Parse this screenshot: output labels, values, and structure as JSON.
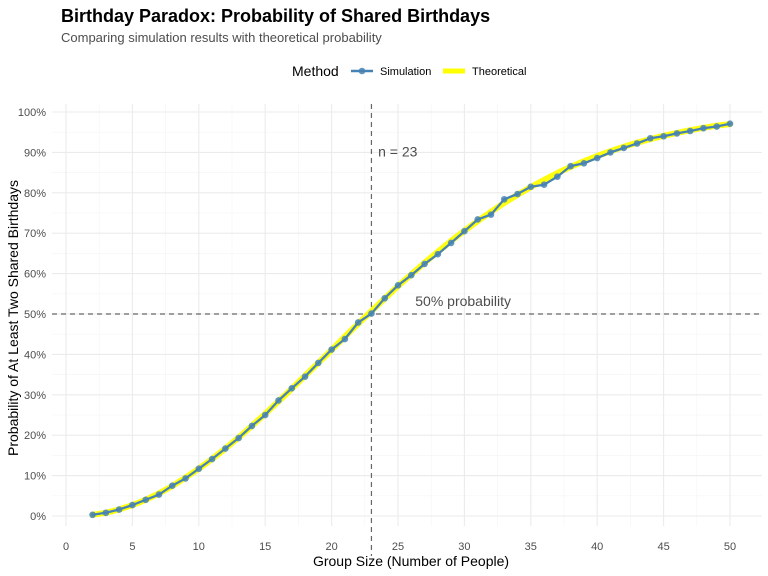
{
  "chart_data": {
    "type": "line",
    "title": "Birthday Paradox: Probability of Shared Birthdays",
    "subtitle": "Comparing simulation results with theoretical probability",
    "xlabel": "Group Size (Number of People)",
    "ylabel": "Probability of At Least Two Shared Birthdays",
    "xlim": [
      0,
      52
    ],
    "ylim": [
      0,
      1
    ],
    "x_ticks": [
      0,
      5,
      10,
      15,
      20,
      25,
      30,
      35,
      40,
      45,
      50
    ],
    "y_ticks": [
      0,
      0.1,
      0.2,
      0.3,
      0.4,
      0.5,
      0.6,
      0.7,
      0.8,
      0.9,
      1.0
    ],
    "y_tick_labels": [
      "0%",
      "10%",
      "20%",
      "30%",
      "40%",
      "50%",
      "60%",
      "70%",
      "80%",
      "90%",
      "100%"
    ],
    "grid": true,
    "legend": {
      "title": "Method",
      "position": "top",
      "entries": [
        {
          "label": "Simulation",
          "color": "#4682B4"
        },
        {
          "label": "Theoretical",
          "color": "#FFFF00"
        }
      ]
    },
    "annotations": [
      {
        "text": "n = 23",
        "x": 23.5,
        "y": 0.89
      },
      {
        "text": "50% probability",
        "x": 26.3,
        "y": 0.52
      }
    ],
    "reference_lines": {
      "vertical_x": 23,
      "horizontal_y": 0.5
    },
    "x": [
      2,
      3,
      4,
      5,
      6,
      7,
      8,
      9,
      10,
      11,
      12,
      13,
      14,
      15,
      16,
      17,
      18,
      19,
      20,
      21,
      22,
      23,
      24,
      25,
      26,
      27,
      28,
      29,
      30,
      31,
      32,
      33,
      34,
      35,
      36,
      37,
      38,
      39,
      40,
      41,
      42,
      43,
      44,
      45,
      46,
      47,
      48,
      49,
      50
    ],
    "series": [
      {
        "name": "Simulation",
        "color": "#4682B4",
        "values": [
          0.003,
          0.008,
          0.016,
          0.027,
          0.04,
          0.053,
          0.075,
          0.093,
          0.117,
          0.141,
          0.167,
          0.193,
          0.223,
          0.25,
          0.286,
          0.316,
          0.345,
          0.379,
          0.412,
          0.438,
          0.479,
          0.501,
          0.539,
          0.571,
          0.596,
          0.624,
          0.648,
          0.676,
          0.705,
          0.734,
          0.746,
          0.784,
          0.797,
          0.815,
          0.82,
          0.84,
          0.866,
          0.873,
          0.886,
          0.9,
          0.911,
          0.922,
          0.935,
          0.94,
          0.947,
          0.953,
          0.96,
          0.964,
          0.971
        ]
      },
      {
        "name": "Theoretical",
        "color": "#FFFF00",
        "values": [
          0.003,
          0.008,
          0.016,
          0.027,
          0.04,
          0.056,
          0.074,
          0.095,
          0.117,
          0.141,
          0.167,
          0.194,
          0.223,
          0.253,
          0.284,
          0.315,
          0.347,
          0.379,
          0.411,
          0.444,
          0.476,
          0.507,
          0.538,
          0.569,
          0.598,
          0.627,
          0.654,
          0.681,
          0.706,
          0.73,
          0.753,
          0.775,
          0.795,
          0.814,
          0.832,
          0.849,
          0.864,
          0.878,
          0.891,
          0.903,
          0.914,
          0.924,
          0.933,
          0.941,
          0.948,
          0.955,
          0.961,
          0.966,
          0.97
        ]
      }
    ]
  }
}
